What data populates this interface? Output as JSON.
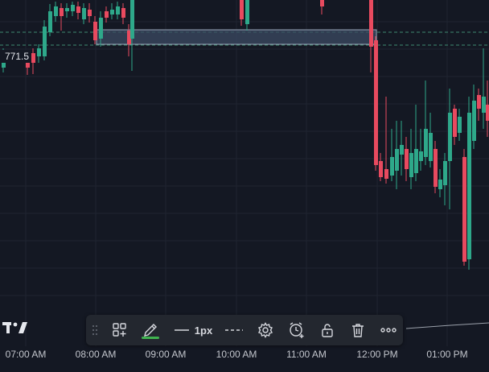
{
  "chart": {
    "price_label": "771.5",
    "time_ticks": [
      "07:00 AM",
      "08:00 AM",
      "09:00 AM",
      "10:00 AM",
      "11:00 AM",
      "12:00 PM",
      "01:00 PM"
    ],
    "up_color": "#2ea88a",
    "down_color": "#e84a5f",
    "background": "#141823",
    "grid_color": "#1f2430",
    "dashed_line_color": "#3e8a70",
    "rectangle_fill": "#3b4a63",
    "rectangle_border": "#9aa6b8"
  },
  "drawing_toolbar": {
    "items": [
      {
        "name": "drag-handle-icon"
      },
      {
        "name": "add-to-favorites-icon"
      },
      {
        "name": "pencil-icon",
        "active": true
      },
      {
        "name": "line-width-icon",
        "label": "1px"
      },
      {
        "name": "line-style-icon"
      },
      {
        "name": "gear-icon"
      },
      {
        "name": "alarm-clock-plus-icon"
      },
      {
        "name": "unlock-icon"
      },
      {
        "name": "trash-icon"
      },
      {
        "name": "more-icon"
      }
    ],
    "active_accent": "#3fb34f",
    "line_width_label": "1px"
  },
  "brand": {
    "logo": "TradingView"
  }
}
